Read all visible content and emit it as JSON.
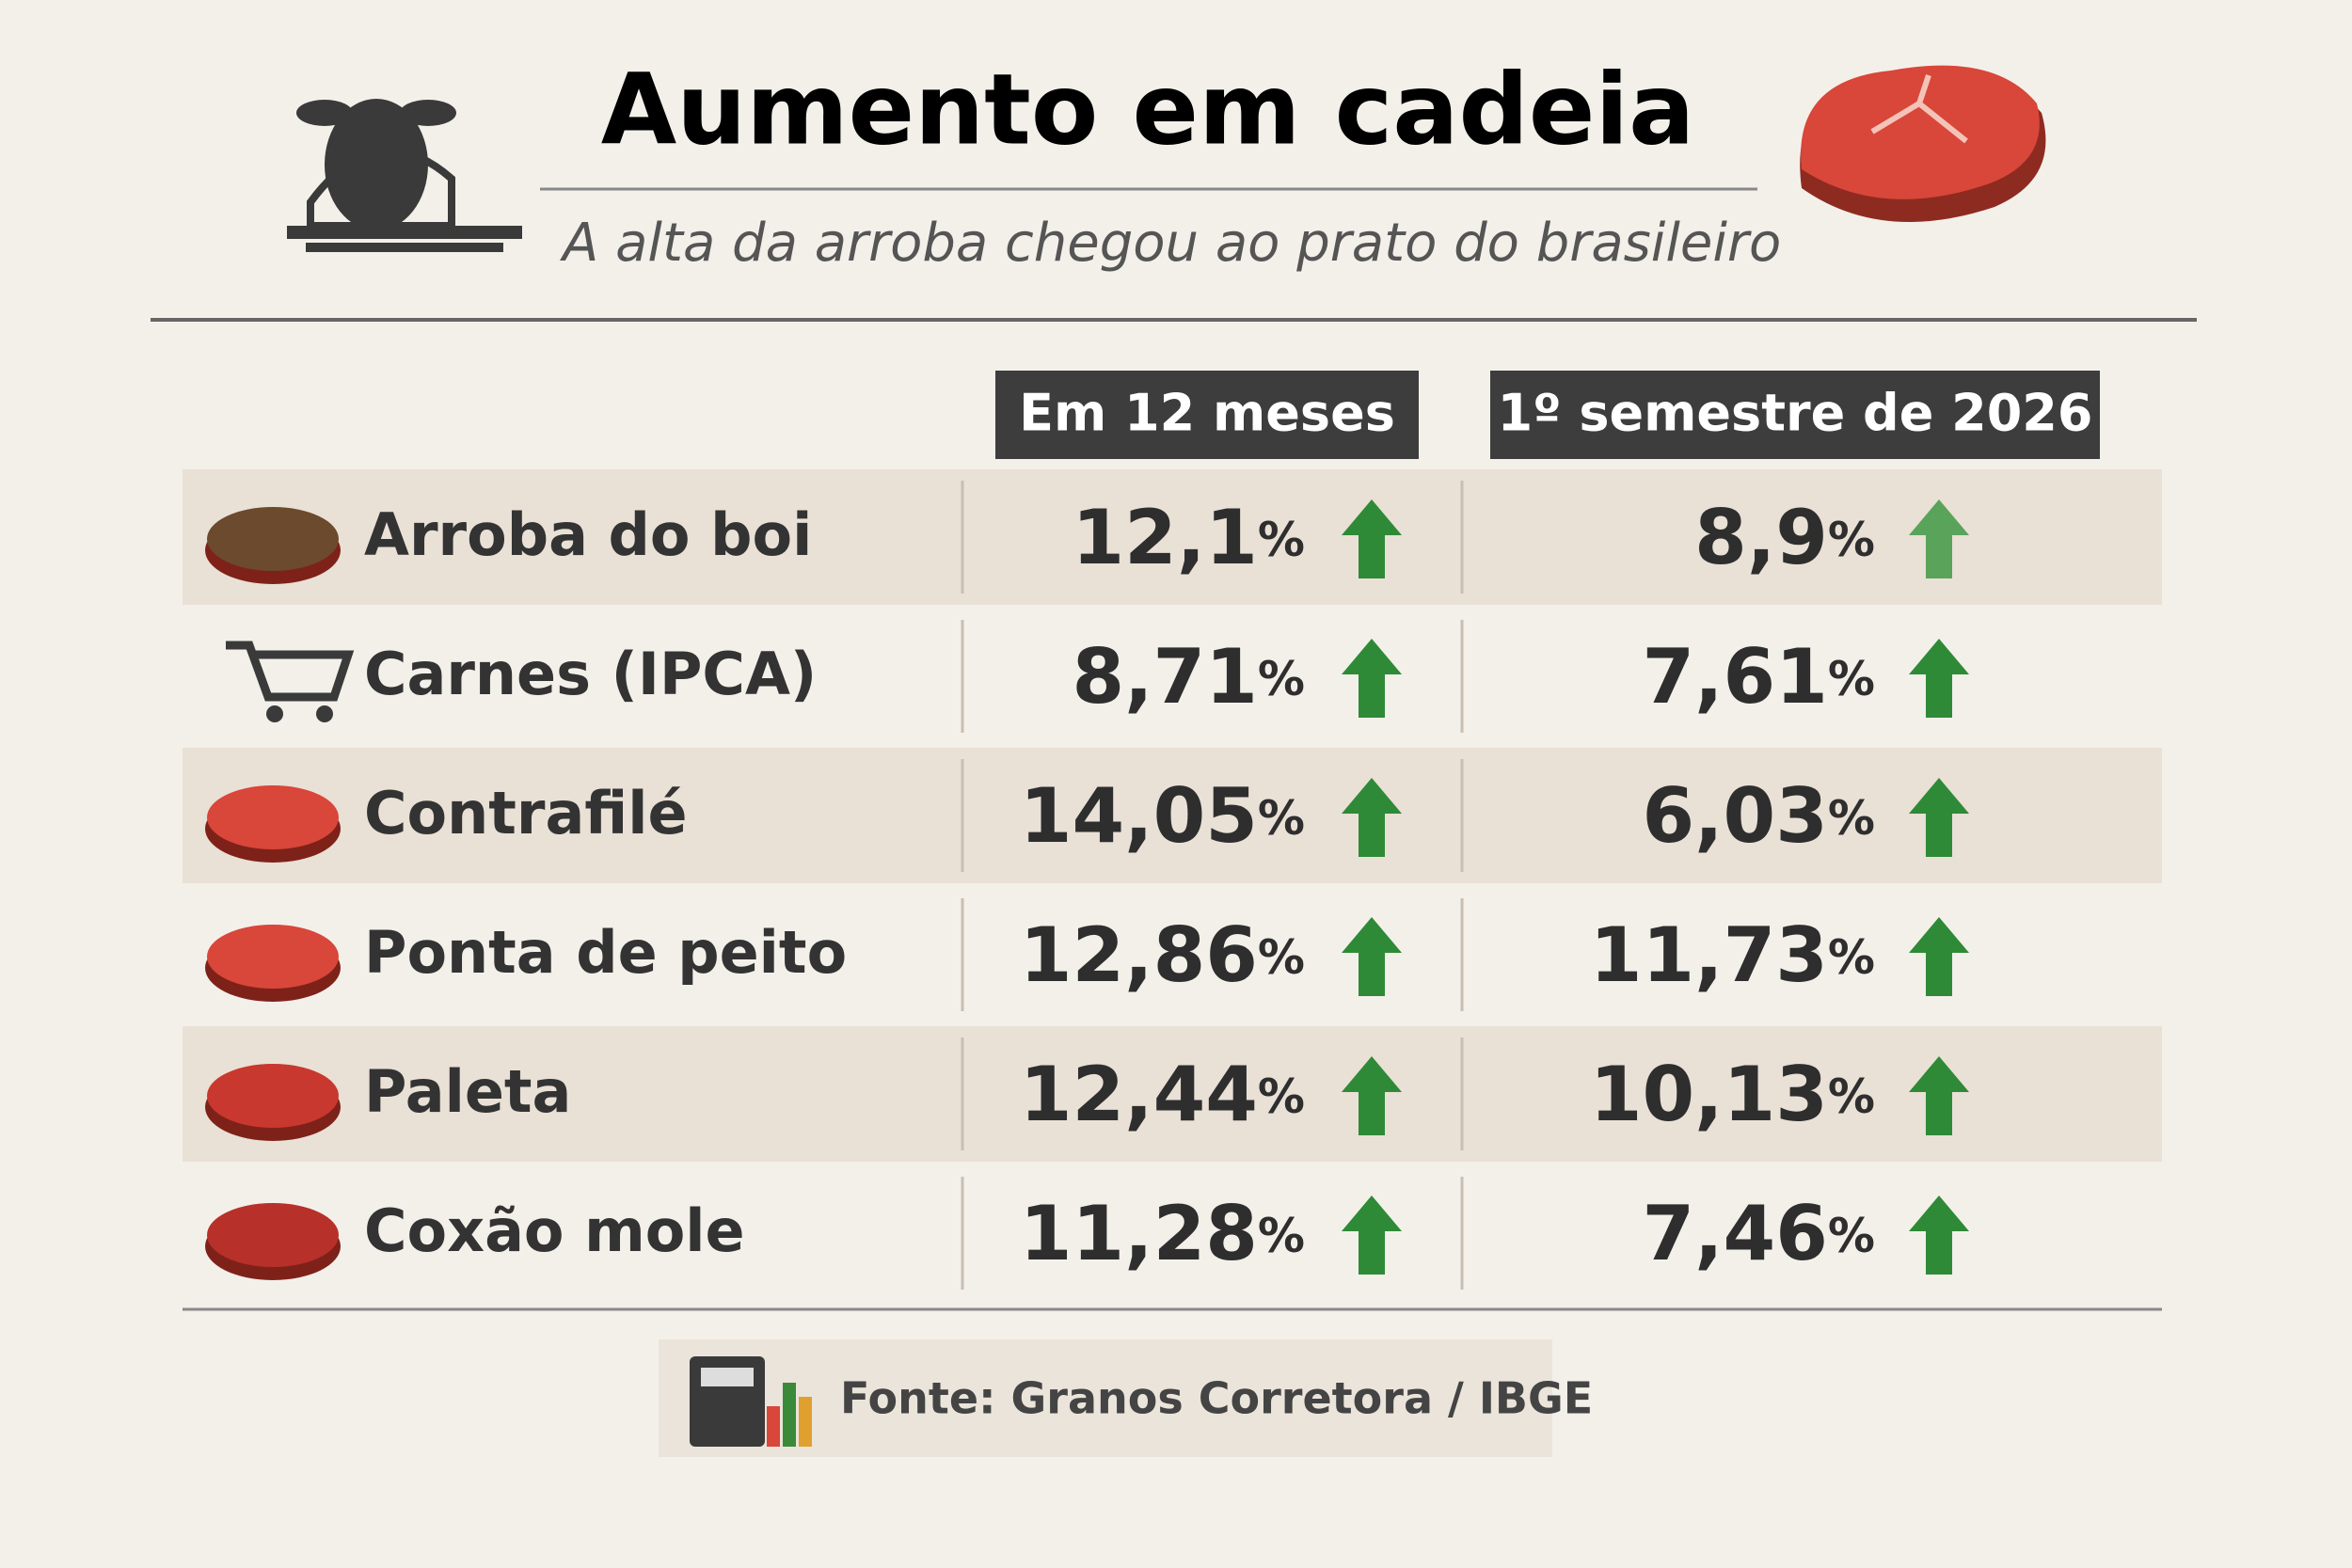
{
  "header": {
    "title": "Aumento em cadeia",
    "subtitle": "A alta da arroba chegou ao prato do brasileiro"
  },
  "table": {
    "columns": [
      "Em 12 meses",
      "1º semestre de 2026"
    ],
    "unit": "%",
    "rows": [
      {
        "label": "Arroba do boi",
        "values": [
          "12,1",
          "8,9"
        ]
      },
      {
        "label": "Carnes (IPCA)",
        "values": [
          "8,71",
          "7,61"
        ]
      },
      {
        "label": "Contrafilé",
        "values": [
          "14,05",
          "6,03"
        ]
      },
      {
        "label": "Ponta de peito",
        "values": [
          "12,86",
          "11,73"
        ]
      },
      {
        "label": "Paleta",
        "values": [
          "12,44",
          "10,13"
        ]
      },
      {
        "label": "Coxão mole",
        "values": [
          "11,28",
          "7,46"
        ]
      }
    ]
  },
  "footer": {
    "source": "Fonte: Granos Corretora / IBGE"
  }
}
